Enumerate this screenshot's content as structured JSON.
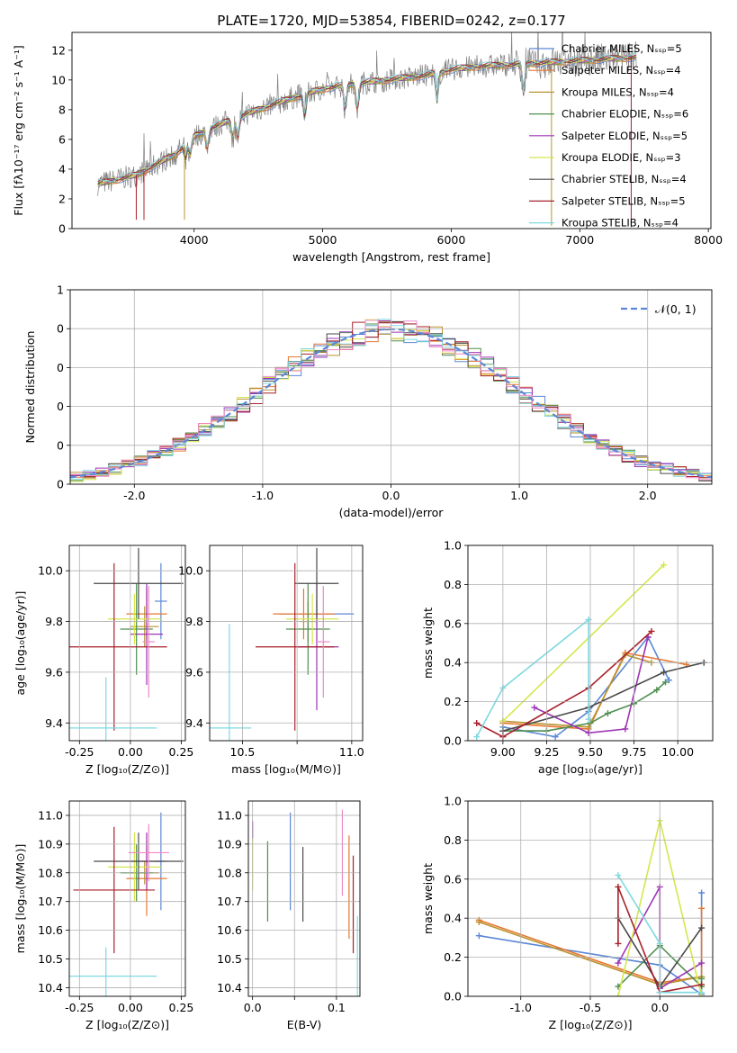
{
  "colors": [
    "#5b87d6",
    "#e8772e",
    "#b8932f",
    "#4f8f4f",
    "#9d35b5",
    "#d6e64c",
    "#4a4a4a",
    "#a8202a",
    "#7ed9e0",
    "#808080",
    "#ee88c8"
  ],
  "chart_data": [
    {
      "id": "spectrum",
      "type": "line",
      "title": "PLATE=1720, MJD=53854, FIBERID=0242, z=0.177",
      "xlabel": "wavelength [Angstrom, rest frame]",
      "ylabel": "Flux [fλ10⁻¹⁷ erg cm⁻² s⁻¹ A⁻¹]",
      "xlim": [
        3050,
        8020
      ],
      "ylim": [
        0,
        13.2
      ],
      "xticks": [
        4000,
        5000,
        6000,
        7000,
        8000
      ],
      "yticks": [
        0,
        2,
        4,
        6,
        8,
        10,
        12
      ],
      "legend_location": "upper-right",
      "legend": [
        {
          "label": "Chabrier MILES, Nₛₛₚ=5",
          "color": "#5b87d6"
        },
        {
          "label": "Salpeter MILES, Nₛₛₚ=4",
          "color": "#e8772e"
        },
        {
          "label": "Kroupa MILES, Nₛₛₚ=4",
          "color": "#b8932f"
        },
        {
          "label": "Chabrier ELODIE, Nₛₛₚ=6",
          "color": "#4f8f4f"
        },
        {
          "label": "Salpeter ELODIE, Nₛₛₚ=5",
          "color": "#9d35b5"
        },
        {
          "label": "Kroupa ELODIE, Nₛₛₚ=3",
          "color": "#d6e64c"
        },
        {
          "label": "Chabrier STELIB, Nₛₛₚ=4",
          "color": "#4a4a4a"
        },
        {
          "label": "Salpeter STELIB, Nₛₛₚ=5",
          "color": "#a8202a"
        },
        {
          "label": "Kroupa STELIB, Nₛₛₚ=4",
          "color": "#7ed9e0"
        }
      ],
      "continuum": {
        "x": [
          3250,
          3400,
          3550,
          3700,
          3850,
          4000,
          4200,
          4400,
          4600,
          4800,
          5000,
          5200,
          5400,
          5600,
          5800,
          6000,
          6200,
          6400,
          6600,
          6800,
          7000,
          7200,
          7400
        ],
        "y": [
          3.0,
          3.3,
          3.6,
          4.3,
          5.0,
          6.2,
          7.0,
          7.7,
          8.3,
          8.9,
          9.4,
          9.7,
          9.9,
          10.1,
          10.3,
          10.7,
          10.9,
          11.0,
          11.1,
          11.2,
          11.3,
          11.4,
          11.5
        ]
      },
      "dips": [
        {
          "x": 3550,
          "depth": 3.0,
          "series": "#a8202a"
        },
        {
          "x": 3610,
          "depth": 3.3,
          "series": "#a8202a"
        },
        {
          "x": 3925,
          "depth": 5.0,
          "series": "#b8932f"
        },
        {
          "x": 5890,
          "depth": 1.0,
          "series": "#7ed9e0"
        },
        {
          "x": 6780,
          "depth": 11.0,
          "series": "#b8932f"
        },
        {
          "x": 7400,
          "depth": 11.4,
          "series": "#a8202a"
        }
      ]
    },
    {
      "id": "residuals",
      "type": "line",
      "xlabel": "(data-model)/error",
      "ylabel": "Normed distribution",
      "xlim": [
        -2.5,
        2.5
      ],
      "ylim": [
        0,
        0.5
      ],
      "xticks": [
        -2,
        -1,
        0,
        1,
        2
      ],
      "yticks": [
        0.0,
        0.1,
        0.2,
        0.3,
        0.4,
        0.5
      ],
      "legend_location": "upper-right",
      "legend": [
        {
          "label": "𝒩(0, 1)",
          "color": "#5b87d6"
        }
      ],
      "bin_width": 0.1,
      "bin_start": -2.5
    },
    {
      "id": "z-age",
      "type": "scatter",
      "xlabel": "Z [log₁₀(Z/Z⊙)]",
      "ylabel": "age  [log₁₀(age/yr)]",
      "xlim": [
        -0.3,
        0.27
      ],
      "ylim": [
        9.33,
        10.1
      ],
      "xticks": [
        -0.25,
        0.0,
        0.25
      ],
      "yticks": [
        9.4,
        9.6,
        9.8,
        10.0
      ],
      "points": [
        {
          "color": "#5b87d6",
          "x": 0.15,
          "xerr": 0.03,
          "y": 9.88,
          "yerr": 0.15
        },
        {
          "color": "#e8772e",
          "x": 0.08,
          "xerr": 0.1,
          "y": 9.83,
          "yerr": 0.1
        },
        {
          "color": "#b8932f",
          "x": 0.07,
          "xerr": 0.07,
          "y": 9.78,
          "yerr": 0.08
        },
        {
          "color": "#4f8f4f",
          "x": 0.03,
          "xerr": 0.08,
          "y": 9.77,
          "yerr": 0.18
        },
        {
          "color": "#9d35b5",
          "x": 0.08,
          "xerr": 0.08,
          "y": 9.75,
          "yerr": 0.2
        },
        {
          "color": "#d6e64c",
          "x": 0.02,
          "xerr": 0.13,
          "y": 9.81,
          "yerr": 0.1
        },
        {
          "color": "#4a4a4a",
          "x": 0.04,
          "xerr": 0.22,
          "y": 9.95,
          "yerr": 0.14
        },
        {
          "color": "#a8202a",
          "x": -0.08,
          "xerr": 0.26,
          "y": 9.7,
          "yerr": 0.33
        },
        {
          "color": "#7ed9e0",
          "x": -0.12,
          "xerr": 0.25,
          "y": 9.38,
          "yerr": 0.2
        },
        {
          "color": "#ee88c8",
          "x": 0.09,
          "xerr": 0.03,
          "y": 9.72,
          "yerr": 0.22
        }
      ]
    },
    {
      "id": "mass-age",
      "type": "scatter",
      "xlabel": "mass [log₁₀(M/M⊙)]",
      "ylabel": "",
      "xlim": [
        10.35,
        11.05
      ],
      "ylim": [
        9.33,
        10.1
      ],
      "xticks": [
        10.5,
        10.75,
        11.0
      ],
      "xticklabels": [
        "10.5",
        "",
        "11.0"
      ],
      "yticks": [
        9.4,
        9.6,
        9.8,
        10.0
      ],
      "points": [
        {
          "color": "#5b87d6",
          "x": 10.84,
          "xerr": 0.17,
          "y": 9.83,
          "yerr": 0.05
        },
        {
          "color": "#e8772e",
          "x": 10.78,
          "xerr": 0.14,
          "y": 9.83,
          "yerr": 0.1
        },
        {
          "color": "#b8932f",
          "x": 10.8,
          "xerr": 0.04,
          "y": 9.8,
          "yerr": 0.08
        },
        {
          "color": "#4f8f4f",
          "x": 10.8,
          "xerr": 0.1,
          "y": 9.77,
          "yerr": 0.18
        },
        {
          "color": "#9d35b5",
          "x": 10.84,
          "xerr": 0.1,
          "y": 9.7,
          "yerr": 0.25
        },
        {
          "color": "#d6e64c",
          "x": 10.82,
          "xerr": 0.12,
          "y": 9.81,
          "yerr": 0.1
        },
        {
          "color": "#4a4a4a",
          "x": 10.84,
          "xerr": 0.1,
          "y": 9.95,
          "yerr": 0.14
        },
        {
          "color": "#a8202a",
          "x": 10.74,
          "xerr": 0.18,
          "y": 9.7,
          "yerr": 0.33
        },
        {
          "color": "#7ed9e0",
          "x": 10.44,
          "xerr": 0.1,
          "y": 9.38,
          "yerr": 0.41
        },
        {
          "color": "#ee88c8",
          "x": 10.87,
          "xerr": 0.03,
          "y": 9.72,
          "yerr": 0.22
        }
      ]
    },
    {
      "id": "weight-age",
      "type": "line",
      "xlabel": "age  [log₁₀(age/yr)]",
      "ylabel": "mass weight",
      "xlim": [
        8.8,
        10.2
      ],
      "ylim": [
        0,
        1.0
      ],
      "xticks": [
        9.0,
        9.25,
        9.5,
        9.75,
        10.0
      ],
      "yticks": [
        0.0,
        0.2,
        0.4,
        0.6,
        0.8,
        1.0
      ],
      "series": [
        {
          "color": "#5b87d6",
          "x": [
            9.0,
            9.3,
            9.49,
            9.83,
            9.95
          ],
          "y": [
            0.07,
            0.02,
            0.15,
            0.53,
            0.31
          ]
        },
        {
          "color": "#e8772e",
          "x": [
            9.0,
            9.49,
            9.7,
            10.05
          ],
          "y": [
            0.09,
            0.06,
            0.45,
            0.39
          ]
        },
        {
          "color": "#b8932f",
          "x": [
            9.0,
            9.49,
            9.7,
            9.85
          ],
          "y": [
            0.1,
            0.07,
            0.44,
            0.4
          ]
        },
        {
          "color": "#4f8f4f",
          "x": [
            9.0,
            9.25,
            9.5,
            9.6,
            9.75,
            9.88,
            9.93
          ],
          "y": [
            0.05,
            0.05,
            0.09,
            0.14,
            0.19,
            0.26,
            0.3
          ]
        },
        {
          "color": "#9d35b5",
          "x": [
            9.18,
            9.49,
            9.7,
            9.83
          ],
          "y": [
            0.17,
            0.04,
            0.06,
            0.53
          ]
        },
        {
          "color": "#d6e64c",
          "x": [
            9.0,
            9.92
          ],
          "y": [
            0.1,
            0.9
          ]
        },
        {
          "color": "#4a4a4a",
          "x": [
            9.0,
            9.49,
            9.92,
            10.15
          ],
          "y": [
            0.05,
            0.17,
            0.35,
            0.4
          ]
        },
        {
          "color": "#a8202a",
          "x": [
            8.85,
            9.0,
            9.49,
            9.85
          ],
          "y": [
            0.09,
            0.02,
            0.27,
            0.56
          ]
        },
        {
          "color": "#7ed9e0",
          "x": [
            8.85,
            9.0,
            9.49,
            9.49
          ],
          "y": [
            0.02,
            0.27,
            0.62,
            0.11
          ]
        }
      ]
    },
    {
      "id": "z-mass",
      "type": "scatter",
      "xlabel": "Z [log₁₀(Z/Z⊙)]",
      "ylabel": "mass [log₁₀(M/M⊙)]",
      "xlim": [
        -0.3,
        0.27
      ],
      "ylim": [
        10.37,
        11.05
      ],
      "xticks": [
        -0.25,
        0.0,
        0.25
      ],
      "yticks": [
        10.4,
        10.5,
        10.6,
        10.7,
        10.8,
        10.9,
        11.0
      ],
      "points": [
        {
          "color": "#5b87d6",
          "x": 0.15,
          "xerr": 0.03,
          "y": 10.84,
          "yerr": 0.17
        },
        {
          "color": "#e8772e",
          "x": 0.08,
          "xerr": 0.1,
          "y": 10.78,
          "yerr": 0.13
        },
        {
          "color": "#b8932f",
          "x": 0.07,
          "xerr": 0.07,
          "y": 10.8,
          "yerr": 0.04
        },
        {
          "color": "#4f8f4f",
          "x": 0.03,
          "xerr": 0.08,
          "y": 10.8,
          "yerr": 0.1
        },
        {
          "color": "#9d35b5",
          "x": 0.08,
          "xerr": 0.08,
          "y": 10.84,
          "yerr": 0.1
        },
        {
          "color": "#d6e64c",
          "x": 0.02,
          "xerr": 0.13,
          "y": 10.82,
          "yerr": 0.12
        },
        {
          "color": "#4a4a4a",
          "x": 0.04,
          "xerr": 0.22,
          "y": 10.84,
          "yerr": 0.1
        },
        {
          "color": "#a8202a",
          "x": -0.08,
          "xerr": 0.2,
          "y": 10.74,
          "yerr": 0.22
        },
        {
          "color": "#7ed9e0",
          "x": -0.12,
          "xerr": 0.25,
          "y": 10.44,
          "yerr": 0.1
        },
        {
          "color": "#ee88c8",
          "x": 0.09,
          "xerr": 0.1,
          "y": 10.87,
          "yerr": 0.1
        }
      ]
    },
    {
      "id": "ebv-mass",
      "type": "scatter",
      "xlabel": "E(B-V)",
      "ylabel": "",
      "xlim": [
        -0.005,
        0.128
      ],
      "ylim": [
        10.37,
        11.05
      ],
      "xticks": [
        0.0,
        0.05,
        0.1
      ],
      "xticklabels": [
        "0.0",
        "",
        "0.1"
      ],
      "yticks": [
        10.4,
        10.5,
        10.6,
        10.7,
        10.8,
        10.9,
        11.0
      ],
      "points": [
        {
          "color": "#9d35b5",
          "x": 0.0,
          "xerr": 0,
          "y": 10.95,
          "yerr": 0.03
        },
        {
          "color": "#d6e64c",
          "x": 0.0,
          "xerr": 0,
          "y": 10.83,
          "yerr": 0.09
        },
        {
          "color": "#4f8f4f",
          "x": 0.018,
          "xerr": 0,
          "y": 10.77,
          "yerr": 0.14
        },
        {
          "color": "#5b87d6",
          "x": 0.045,
          "xerr": 0,
          "y": 10.84,
          "yerr": 0.17
        },
        {
          "color": "#4a4a4a",
          "x": 0.06,
          "xerr": 0,
          "y": 10.76,
          "yerr": 0.13
        },
        {
          "color": "#ee88c8",
          "x": 0.107,
          "xerr": 0,
          "y": 10.87,
          "yerr": 0.15
        },
        {
          "color": "#e8772e",
          "x": 0.115,
          "xerr": 0,
          "y": 10.75,
          "yerr": 0.18
        },
        {
          "color": "#a8202a",
          "x": 0.12,
          "xerr": 0,
          "y": 10.69,
          "yerr": 0.17
        },
        {
          "color": "#7ed9e0",
          "x": 0.125,
          "xerr": 0,
          "y": 10.5,
          "yerr": 0.15
        }
      ]
    },
    {
      "id": "weight-z",
      "type": "line",
      "xlabel": "Z [log₁₀(Z/Z⊙)]",
      "ylabel": "mass weight",
      "xlim": [
        -1.38,
        0.38
      ],
      "ylim": [
        0,
        1.0
      ],
      "xticks": [
        -1.0,
        -0.5,
        0.0
      ],
      "yticks": [
        0.0,
        0.2,
        0.4,
        0.6,
        0.8,
        1.0
      ],
      "series": [
        {
          "color": "#5b87d6",
          "x": [
            -1.3,
            0.0,
            0.3,
            0.3
          ],
          "y": [
            0.31,
            0.16,
            0.01,
            0.53
          ]
        },
        {
          "color": "#e8772e",
          "x": [
            -1.3,
            0.0,
            0.3,
            0.3
          ],
          "y": [
            0.39,
            0.07,
            0.1,
            0.45
          ]
        },
        {
          "color": "#b8932f",
          "x": [
            -1.3,
            0.0,
            0.3
          ],
          "y": [
            0.38,
            0.06,
            0.1
          ]
        },
        {
          "color": "#4f8f4f",
          "x": [
            -0.3,
            0.0,
            0.3,
            0.3
          ],
          "y": [
            0.05,
            0.26,
            0.05,
            0.09
          ]
        },
        {
          "color": "#9d35b5",
          "x": [
            -0.3,
            0.0,
            0.0,
            0.3
          ],
          "y": [
            0.17,
            0.56,
            0.04,
            0.17
          ]
        },
        {
          "color": "#d6e64c",
          "x": [
            -0.3,
            0.0,
            0.3
          ],
          "y": [
            0.0,
            0.9,
            0.0
          ]
        },
        {
          "color": "#4a4a4a",
          "x": [
            -0.3,
            0.0,
            0.3
          ],
          "y": [
            0.4,
            0.05,
            0.35
          ]
        },
        {
          "color": "#a8202a",
          "x": [
            -0.3,
            -0.3,
            0.0,
            0.3
          ],
          "y": [
            0.27,
            0.56,
            0.02,
            0.06
          ]
        },
        {
          "color": "#7ed9e0",
          "x": [
            -0.3,
            0.0,
            0.0,
            0.3
          ],
          "y": [
            0.62,
            0.27,
            0.02,
            0.02
          ]
        }
      ]
    }
  ]
}
